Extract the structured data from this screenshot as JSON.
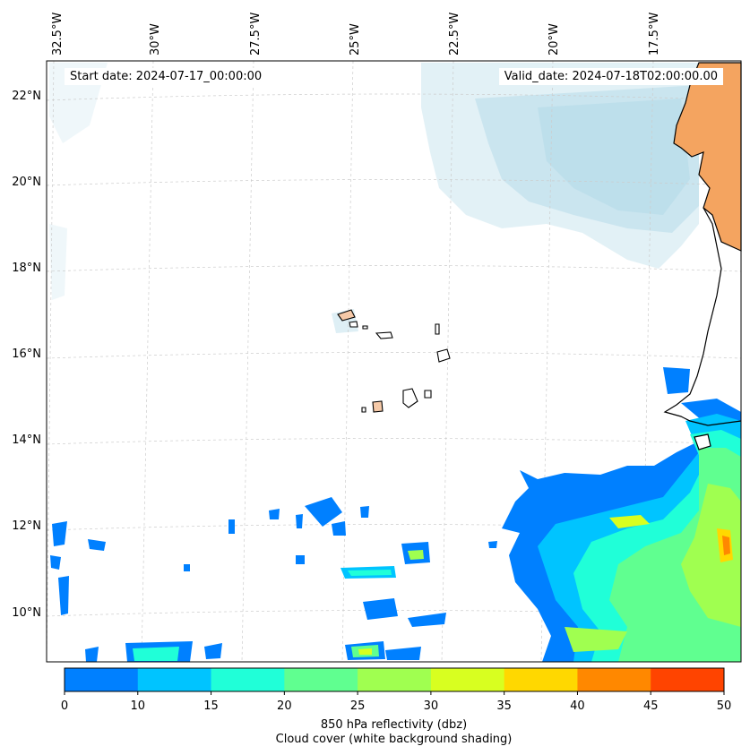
{
  "header": {
    "start_date": "Start date: 2024-07-17_00:00:00",
    "valid_date": "Valid_date: 2024-07-18T02:00:00.00"
  },
  "map": {
    "lon_labels": [
      "32.5°W",
      "30°W",
      "27.5°W",
      "25°W",
      "22.5°W",
      "20°W",
      "17.5°W"
    ],
    "lat_labels": [
      "22°N",
      "20°N",
      "18°N",
      "16°N",
      "14°N",
      "12°N",
      "10°N"
    ],
    "gridlines": true,
    "land_color": "#f4a460",
    "cloud_color": "#add8e6"
  },
  "colorbar": {
    "ticks": [
      "0",
      "10",
      "15",
      "20",
      "25",
      "30",
      "35",
      "40",
      "45",
      "50"
    ],
    "colors": [
      "#0080ff",
      "#00c4ff",
      "#20ffd8",
      "#60ff90",
      "#a0ff50",
      "#d8ff20",
      "#ffd800",
      "#ff8800",
      "#ff4400"
    ],
    "label": "850 hPa reflectivity (dbz)",
    "sublabel": "Cloud cover (white background shading)"
  }
}
